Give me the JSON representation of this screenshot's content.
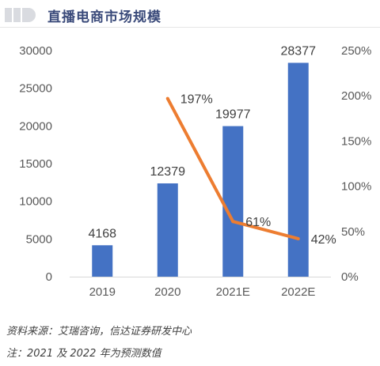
{
  "title": "直播电商市场规模",
  "chart_data": {
    "type": "bar",
    "categories": [
      "2019",
      "2020",
      "2021E",
      "2022E"
    ],
    "series": [
      {
        "type": "bar",
        "axis": "left",
        "color": "#4472c4",
        "values": [
          4168,
          12379,
          19977,
          28377
        ],
        "labels": [
          "4168",
          "12379",
          "19977",
          "28377"
        ]
      },
      {
        "type": "line",
        "axis": "right",
        "color": "#ed7d31",
        "values": [
          null,
          197,
          61,
          42
        ],
        "labels": [
          "",
          "197%",
          "61%",
          "42%"
        ]
      }
    ],
    "y_left": {
      "min": 0,
      "max": 30000,
      "ticks": [
        "0",
        "5000",
        "10000",
        "15000",
        "20000",
        "25000",
        "30000"
      ]
    },
    "y_right": {
      "min": 0,
      "max": 250,
      "ticks": [
        "0%",
        "50%",
        "100%",
        "150%",
        "200%",
        "250%"
      ]
    },
    "grid": false,
    "legend": "none"
  },
  "footnotes": {
    "source": "资料来源：艾瑞咨询，信达证券研发中心",
    "note": "注：2021 及 2022 年为预测数值"
  }
}
